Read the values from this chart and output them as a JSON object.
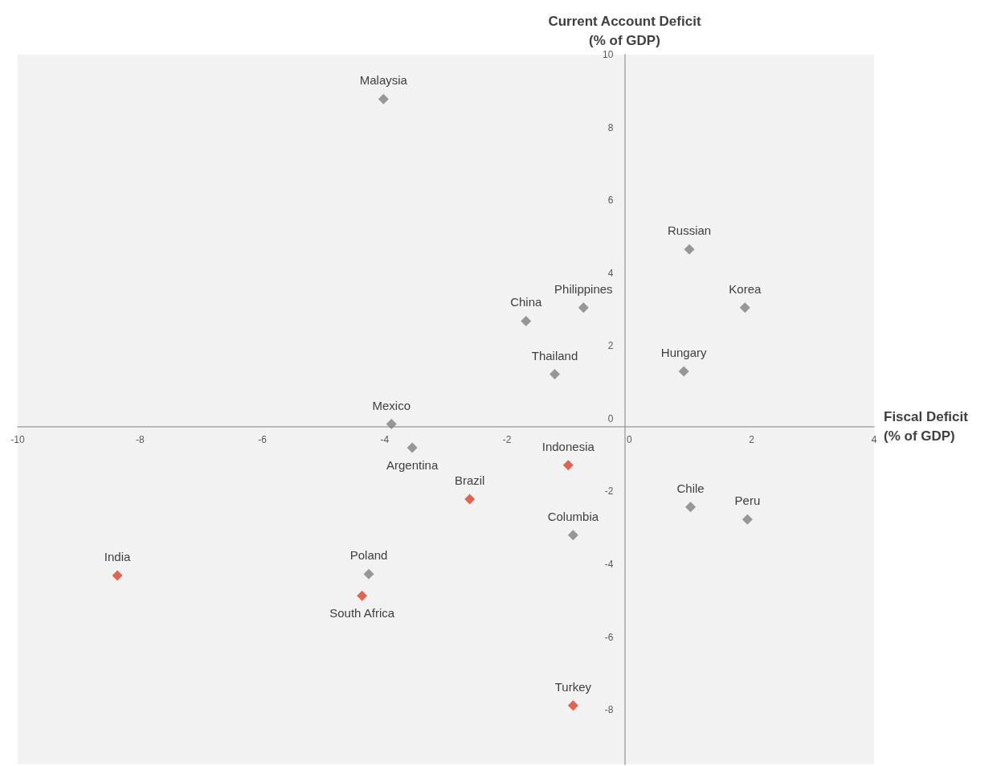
{
  "chart_data": {
    "type": "scatter",
    "xlabel": "Fiscal Deficit\n(% of GDP)",
    "ylabel": "Current Account Deficit\n(% of GDP)",
    "xlim": [
      -10,
      4
    ],
    "xticks": [
      -10,
      -8,
      -6,
      -4,
      -2,
      0,
      2,
      4
    ],
    "ylim": [
      -9.5,
      10
    ],
    "yticks": [
      -8,
      -6,
      -4,
      -2,
      0,
      2,
      4,
      6,
      8,
      10
    ],
    "marker": "diamond",
    "series": [
      {
        "color": "#7f7f7f",
        "x": [
          -4.02,
          0.98,
          1.89,
          -0.75,
          -1.69,
          -1.22,
          0.89,
          -3.89,
          -3.55,
          -0.92,
          1.0,
          1.93,
          -4.26
        ],
        "values": [
          8.78,
          4.65,
          3.05,
          3.05,
          2.68,
          1.22,
          1.3,
          -0.15,
          -0.8,
          -3.2,
          -2.43,
          -2.77,
          -4.27
        ]
      },
      {
        "color": "#d9412b",
        "x": [
          -1.0,
          -2.61,
          -8.37,
          -4.37,
          -0.92
        ],
        "values": [
          -1.28,
          -2.21,
          -4.31,
          -4.87,
          -7.88
        ]
      }
    ],
    "annotations": [
      {
        "text": "Malaysia",
        "x": -4.02,
        "y": 8.78
      },
      {
        "text": "Russian",
        "x": 0.98,
        "y": 4.65
      },
      {
        "text": "Korea",
        "x": 1.89,
        "y": 3.05
      },
      {
        "text": "Philippines",
        "x": -0.75,
        "y": 3.05
      },
      {
        "text": "China",
        "x": -1.69,
        "y": 2.68
      },
      {
        "text": "Thailand",
        "x": -1.22,
        "y": 1.22
      },
      {
        "text": "Hungary",
        "x": 0.89,
        "y": 1.3
      },
      {
        "text": "Mexico",
        "x": -3.89,
        "y": -0.15
      },
      {
        "text": "Argentina",
        "x": -3.55,
        "y": -0.8
      },
      {
        "text": "Columbia",
        "x": -0.92,
        "y": -3.2
      },
      {
        "text": "Chile",
        "x": 1.0,
        "y": -2.43
      },
      {
        "text": "Peru",
        "x": 1.93,
        "y": -2.77
      },
      {
        "text": "Poland",
        "x": -4.26,
        "y": -4.27
      },
      {
        "text": "Indonesia",
        "x": -1.0,
        "y": -1.28
      },
      {
        "text": "Brazil",
        "x": -2.61,
        "y": -2.21
      },
      {
        "text": "India",
        "x": -8.37,
        "y": -4.31
      },
      {
        "text": "South Africa",
        "x": -4.37,
        "y": -4.87
      },
      {
        "text": "Turkey",
        "x": -0.92,
        "y": -7.88
      }
    ]
  }
}
